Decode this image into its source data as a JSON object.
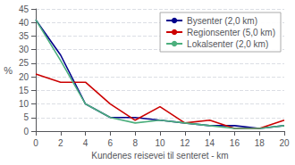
{
  "chart_data": {
    "type": "line",
    "xlabel": "Kundenes reisevei til senteret - km",
    "ylabel": "%",
    "x": [
      0,
      2,
      4,
      6,
      8,
      10,
      12,
      14,
      16,
      18,
      20
    ],
    "series": [
      {
        "name": "Bysenter (2,0 km)",
        "color": "#00008B",
        "values": [
          41,
          28,
          10,
          5,
          5,
          4,
          3,
          2,
          2,
          1,
          2
        ]
      },
      {
        "name": "Regionsenter (5,0 km)",
        "color": "#CC0000",
        "values": [
          21,
          18,
          18,
          10,
          4,
          9,
          3,
          4,
          1,
          1,
          4
        ]
      },
      {
        "name": "Lokalsenter (2,0 km)",
        "color": "#4CAF7D",
        "values": [
          41,
          26,
          10,
          5,
          3,
          4,
          3,
          2,
          1,
          1,
          2
        ]
      }
    ],
    "xlim": [
      0,
      20
    ],
    "ylim": [
      0,
      45
    ],
    "xticks": [
      0,
      2,
      4,
      6,
      8,
      10,
      12,
      14,
      16,
      18,
      20
    ],
    "yticks": [
      0,
      5,
      10,
      15,
      20,
      25,
      30,
      35,
      40,
      45
    ],
    "grid": true,
    "legend": "upper right"
  }
}
